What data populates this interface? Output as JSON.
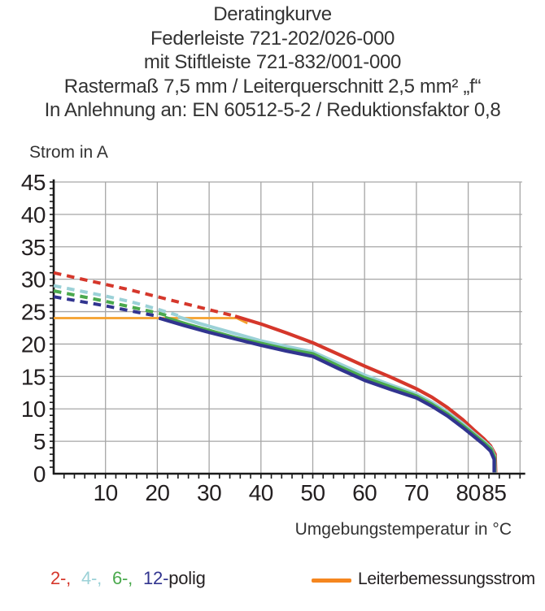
{
  "title": {
    "lines": [
      "Deratingkurve",
      "Federleiste 721-202/026-000",
      "mit Stiftleiste 721-832/001-000",
      "Rastermaß 7,5 mm / Leiterquerschnitt 2,5 mm² „f“",
      "In Anlehnung an: EN 60512-5-2 / Reduktionsfaktor 0,8"
    ]
  },
  "legend": {
    "poles": {
      "items": [
        {
          "text": "2-,",
          "color": "#d5372b"
        },
        {
          "text": "4-,",
          "color": "#9bd1d7"
        },
        {
          "text": "6-,",
          "color": "#4aa94d"
        },
        {
          "text": "12-",
          "color": "#31348f"
        },
        {
          "text": "polig",
          "color": "#231f20"
        }
      ]
    },
    "rated_current": {
      "label": "Leiterbemessungsstrom",
      "swatch_color": "#f5861f"
    }
  },
  "chart_data": {
    "type": "line",
    "title": "Deratingkurve",
    "xlabel": "Umgebungstemperatur in °C",
    "ylabel": "Strom in A",
    "xlim": [
      0,
      91
    ],
    "ylim": [
      0,
      45
    ],
    "x_ticks": [
      10,
      20,
      30,
      40,
      50,
      60,
      70,
      80,
      85
    ],
    "y_ticks": [
      0,
      5,
      10,
      15,
      20,
      25,
      30,
      35,
      40,
      45
    ],
    "grid": true,
    "grid_x_step": 10,
    "grid_y_step": 5,
    "colors": {
      "grid": "#a6a6a6",
      "axis": "#1a1a1a"
    },
    "series": [
      {
        "name": "Leiterbemessungsstrom",
        "color": "#f5a02c",
        "width": 2.8,
        "points": [
          [
            0,
            24
          ],
          [
            35.3,
            24
          ],
          [
            37.4,
            23.2
          ]
        ]
      },
      {
        "name": "2-polig",
        "color": "#d5372b",
        "dashed": [
          [
            0,
            31
          ],
          [
            5,
            30.1
          ],
          [
            10,
            29.2
          ],
          [
            15,
            28.3
          ],
          [
            20,
            27.3
          ],
          [
            25,
            26.3
          ],
          [
            30,
            25.3
          ],
          [
            35,
            24.3
          ]
        ],
        "solid": [
          [
            35,
            24.3
          ],
          [
            40,
            23.1
          ],
          [
            45,
            21.7
          ],
          [
            50,
            20.2
          ],
          [
            55,
            18.4
          ],
          [
            60,
            16.6
          ],
          [
            65,
            14.9
          ],
          [
            70,
            13.1
          ],
          [
            73,
            11.8
          ],
          [
            76,
            10.2
          ],
          [
            79,
            8.3
          ],
          [
            81,
            6.8
          ],
          [
            83,
            5.4
          ],
          [
            84.3,
            4.3
          ],
          [
            85.2,
            3.0
          ],
          [
            85.3,
            0.2
          ]
        ]
      },
      {
        "name": "4-polig",
        "color": "#9bd1d7",
        "dashed": [
          [
            0,
            29
          ],
          [
            5,
            28.2
          ],
          [
            10,
            27.4
          ],
          [
            15,
            26.5
          ],
          [
            20,
            25.4
          ],
          [
            24,
            24.4
          ]
        ],
        "solid": [
          [
            24,
            24.2
          ],
          [
            28,
            23.2
          ],
          [
            32,
            22.3
          ],
          [
            36,
            21.4
          ],
          [
            40,
            20.5
          ],
          [
            45,
            19.6
          ],
          [
            50,
            18.8
          ],
          [
            55,
            17.0
          ],
          [
            60,
            15.2
          ],
          [
            65,
            13.7
          ],
          [
            70,
            12.3
          ],
          [
            73,
            11.0
          ],
          [
            76,
            9.5
          ],
          [
            79,
            7.7
          ],
          [
            81,
            6.3
          ],
          [
            83,
            5.0
          ],
          [
            84.4,
            4.0
          ],
          [
            85.1,
            2.7
          ],
          [
            85.2,
            0.2
          ]
        ]
      },
      {
        "name": "6-polig",
        "color": "#4aa94d",
        "dashed": [
          [
            0,
            28.2
          ],
          [
            5,
            27.4
          ],
          [
            10,
            26.6
          ],
          [
            15,
            25.7
          ],
          [
            20,
            24.8
          ],
          [
            21.8,
            24.4
          ]
        ],
        "solid": [
          [
            21.5,
            24.1
          ],
          [
            26,
            23.0
          ],
          [
            30,
            22.1
          ],
          [
            35,
            21.0
          ],
          [
            40,
            20.1
          ],
          [
            45,
            19.2
          ],
          [
            50,
            18.5
          ],
          [
            55,
            16.6
          ],
          [
            60,
            14.8
          ],
          [
            65,
            13.4
          ],
          [
            70,
            12.0
          ],
          [
            73,
            10.7
          ],
          [
            76,
            9.2
          ],
          [
            79,
            7.4
          ],
          [
            81,
            6.1
          ],
          [
            83,
            4.8
          ],
          [
            84.4,
            3.8
          ],
          [
            85.1,
            2.5
          ],
          [
            85.1,
            0.2
          ]
        ]
      },
      {
        "name": "12-polig",
        "color": "#31348f",
        "dashed": [
          [
            0,
            27.3
          ],
          [
            5,
            26.6
          ],
          [
            10,
            25.9
          ],
          [
            15,
            25.1
          ],
          [
            20,
            24.3
          ]
        ],
        "solid": [
          [
            20.3,
            24.0
          ],
          [
            25,
            22.9
          ],
          [
            30,
            21.8
          ],
          [
            35,
            20.8
          ],
          [
            40,
            19.8
          ],
          [
            45,
            18.9
          ],
          [
            50,
            18.1
          ],
          [
            55,
            16.2
          ],
          [
            60,
            14.4
          ],
          [
            65,
            13.0
          ],
          [
            70,
            11.7
          ],
          [
            73,
            10.4
          ],
          [
            76,
            8.9
          ],
          [
            79,
            7.1
          ],
          [
            81,
            5.8
          ],
          [
            83,
            4.5
          ],
          [
            84.3,
            3.5
          ],
          [
            85,
            2.2
          ],
          [
            85,
            0.2
          ]
        ]
      }
    ]
  }
}
